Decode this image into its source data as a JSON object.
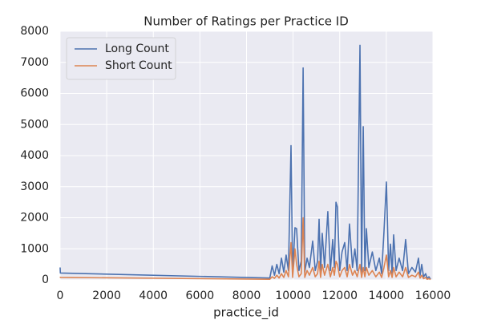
{
  "chart_data": {
    "type": "line",
    "title": "Number of Ratings per Practice ID",
    "x_label": "practice_id",
    "x": [
      0,
      10,
      9000,
      9100,
      9200,
      9300,
      9400,
      9500,
      9600,
      9700,
      9800,
      9910,
      9980,
      10080,
      10150,
      10250,
      10350,
      10430,
      10500,
      10600,
      10700,
      10840,
      10950,
      11050,
      11115,
      11180,
      11250,
      11350,
      11490,
      11600,
      11700,
      11770,
      11840,
      11900,
      12000,
      12100,
      12215,
      12320,
      12420,
      12550,
      12650,
      12750,
      12870,
      12940,
      13010,
      13080,
      13145,
      13250,
      13400,
      13550,
      13700,
      13800,
      13900,
      14005,
      14100,
      14180,
      14250,
      14315,
      14420,
      14550,
      14700,
      14830,
      14950,
      15100,
      15250,
      15380,
      15450,
      15520,
      15600,
      15690,
      15750,
      15830,
      15900
    ],
    "series": [
      {
        "name": "Long Count",
        "color": "#4c72b0",
        "values": [
          400,
          220,
          60,
          450,
          150,
          500,
          200,
          700,
          250,
          800,
          300,
          4320,
          200,
          1680,
          1650,
          300,
          600,
          6820,
          250,
          700,
          400,
          1250,
          300,
          600,
          1950,
          250,
          1500,
          400,
          2200,
          300,
          1300,
          400,
          2500,
          2350,
          300,
          900,
          1200,
          300,
          1800,
          400,
          1000,
          300,
          7550,
          200,
          4930,
          300,
          1650,
          400,
          900,
          300,
          700,
          200,
          1550,
          3150,
          300,
          1150,
          200,
          1450,
          300,
          700,
          300,
          1300,
          200,
          400,
          250,
          700,
          150,
          500,
          100,
          200,
          50,
          100,
          20
        ]
      },
      {
        "name": "Short Count",
        "color": "#dd8452",
        "values": [
          100,
          80,
          20,
          100,
          50,
          150,
          60,
          200,
          80,
          300,
          100,
          1200,
          80,
          1000,
          500,
          100,
          200,
          2000,
          80,
          300,
          150,
          400,
          100,
          200,
          600,
          80,
          500,
          150,
          500,
          100,
          400,
          150,
          600,
          500,
          100,
          300,
          400,
          100,
          500,
          150,
          300,
          100,
          500,
          80,
          400,
          100,
          400,
          150,
          300,
          100,
          250,
          80,
          400,
          800,
          100,
          300,
          80,
          400,
          100,
          250,
          100,
          400,
          80,
          150,
          100,
          250,
          60,
          150,
          40,
          80,
          20,
          40,
          10
        ]
      }
    ],
    "xlim": [
      0,
      16000
    ],
    "xticks": [
      0,
      2000,
      4000,
      6000,
      8000,
      10000,
      12000,
      14000,
      16000
    ],
    "ylim": [
      0,
      8000
    ],
    "yticks": [
      0,
      1000,
      2000,
      3000,
      4000,
      5000,
      6000,
      7000,
      8000
    ],
    "grid": true,
    "legend": "upper left"
  }
}
